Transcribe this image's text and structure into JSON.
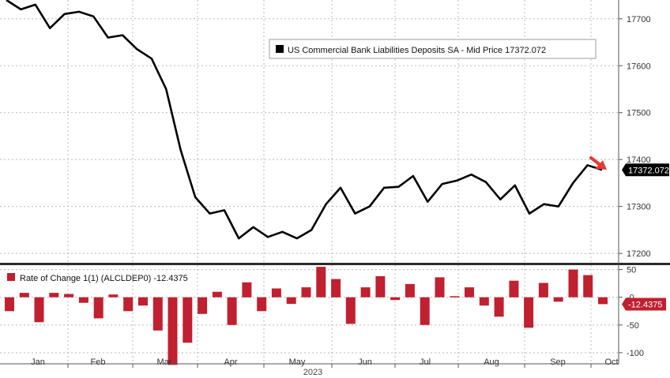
{
  "chart_data": [
    {
      "type": "line",
      "legend": {
        "label": "US Commercial Bank Liabilities Deposits SA - Mid Price 17372.072",
        "placement": "top-right"
      },
      "last_value_label": "17372.072",
      "y_ticks": [
        "17700",
        "17600",
        "17500",
        "17400",
        "17300",
        "17200"
      ],
      "y_tick_values": [
        17700,
        17600,
        17500,
        17400,
        17300,
        17200
      ],
      "ylim": [
        17180,
        17740
      ],
      "grid": true,
      "series": [
        {
          "values": [
            17740,
            17720,
            17730,
            17680,
            17710,
            17715,
            17705,
            17660,
            17665,
            17635,
            17615,
            17550,
            17420,
            17320,
            17285,
            17292,
            17232,
            17256,
            17235,
            17246,
            17232,
            17250,
            17305,
            17340,
            17285,
            17300,
            17340,
            17342,
            17365,
            17310,
            17348,
            17355,
            17368,
            17352,
            17315,
            17345,
            17285,
            17305,
            17300,
            17350,
            17388,
            17378
          ],
          "color": "#000000"
        }
      ]
    },
    {
      "type": "bar",
      "legend": {
        "label": "Rate of Change 1(1) (ALCLDEP0) -12.4375",
        "placement": "top-left"
      },
      "last_value_label": "-12.4375",
      "y_ticks": [
        "50",
        "-0",
        "-50",
        "-100"
      ],
      "y_tick_values": [
        50,
        0,
        -50,
        -100
      ],
      "ylim": [
        -120,
        58
      ],
      "grid": true,
      "series": [
        {
          "values": [
            -25,
            8,
            -45,
            8,
            6,
            -10,
            -38,
            5,
            -25,
            -15,
            -60,
            -122,
            -82,
            -30,
            10,
            -50,
            27,
            -25,
            16,
            -12,
            18,
            55,
            33,
            -48,
            18,
            38,
            -5,
            24,
            -50,
            36,
            2,
            18,
            -15,
            -35,
            30,
            -55,
            26,
            -8,
            50,
            40,
            -12.4375
          ],
          "color": "#c0202f"
        }
      ]
    }
  ],
  "x_axis": {
    "months": [
      "Jan",
      "Feb",
      "Mar",
      "Apr",
      "May",
      "Jun",
      "Jul",
      "Aug",
      "Sep",
      "Oct"
    ],
    "year": "2023"
  },
  "colors": {
    "line": "#000000",
    "bars": "#c0202f",
    "arrow": "#e53935",
    "value_tag_line": "#000000",
    "value_tag_bar": "#c0202f",
    "grid": "#b9b9b9"
  }
}
